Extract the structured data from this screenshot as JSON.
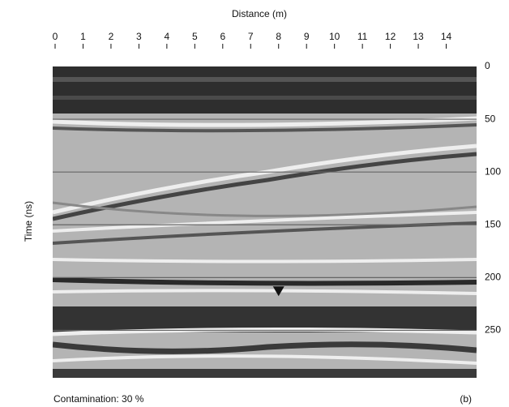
{
  "chart_data": {
    "type": "radargram",
    "x_label": "Distance (m)",
    "y_label": "Time (ns)",
    "xlim": [
      0,
      15
    ],
    "xticks": [
      0,
      1,
      2,
      3,
      4,
      5,
      6,
      7,
      8,
      9,
      10,
      11,
      12,
      13,
      14
    ],
    "ylim": [
      0,
      295
    ],
    "yticks": [
      0,
      50,
      100,
      150,
      200,
      250
    ],
    "grid": true,
    "marker": {
      "x": 8,
      "y": 213
    },
    "annotations": [
      "Contamination: 30 %",
      "(b)"
    ]
  }
}
